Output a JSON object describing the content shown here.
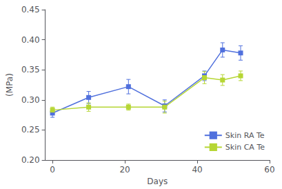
{
  "chart_data": {
    "type": "line",
    "xlabel": "Days",
    "ylabel": "(MPa)",
    "x": [
      0,
      10,
      21,
      31,
      42,
      47,
      52
    ],
    "series": [
      {
        "name": "Skin RA Te",
        "values": [
          0.278,
          0.304,
          0.322,
          0.29,
          0.34,
          0.383,
          0.378
        ],
        "errors": [
          0.007,
          0.01,
          0.012,
          0.01,
          0.008,
          0.012,
          0.012
        ],
        "marker": "square"
      },
      {
        "name": "Skin CA Te",
        "values": [
          0.283,
          0.288,
          0.288,
          0.288,
          0.337,
          0.333,
          0.34
        ],
        "errors": [
          0.005,
          0.007,
          0.005,
          0.01,
          0.01,
          0.009,
          0.008
        ],
        "marker": "square"
      }
    ],
    "xlim": [
      -2,
      60
    ],
    "xticks": [
      0,
      20,
      40,
      60
    ],
    "ylim": [
      0.2,
      0.45
    ],
    "yticks": [
      {
        "value": 0.2,
        "label": "0.20"
      },
      0.25,
      {
        "value": 0.3,
        "label": "0.30"
      },
      0.35,
      {
        "value": 0.4,
        "label": "0.40"
      },
      0.45
    ],
    "legend": "lower right",
    "grid": false
  }
}
